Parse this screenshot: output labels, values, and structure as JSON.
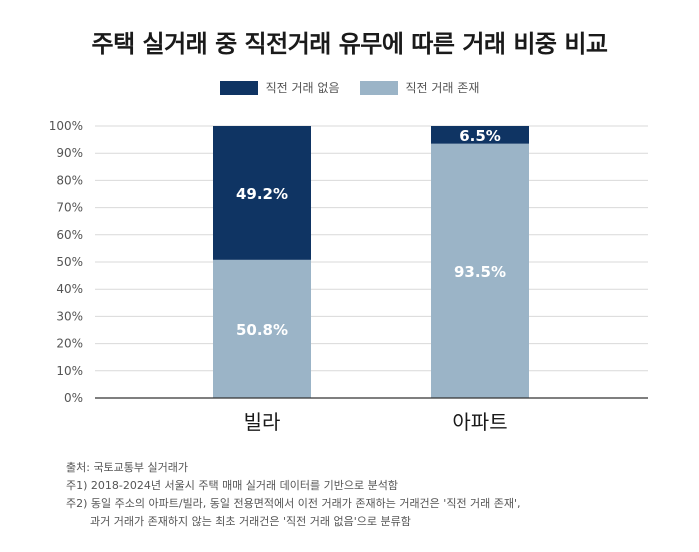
{
  "title": "주택 실거래 중 직전거래 유무에 따른 거래 비중 비교",
  "colors": {
    "no_prior": "#0f3463",
    "prior": "#9bb4c7"
  },
  "chart_data": {
    "type": "bar",
    "stacked": true,
    "categories": [
      "빌라",
      "아파트"
    ],
    "series": [
      {
        "name": "직전 거래 존재",
        "values": [
          50.8,
          93.5
        ],
        "labels": [
          "50.8%",
          "93.5%"
        ]
      },
      {
        "name": "직전 거래 없음",
        "values": [
          49.2,
          6.5
        ],
        "labels": [
          "49.2%",
          "6.5%"
        ]
      }
    ],
    "legend": [
      "직전 거래 없음",
      "직전 거래 존재"
    ],
    "legend_placement": "top",
    "ylim": [
      0,
      100
    ],
    "yticks": [
      "0%",
      "10%",
      "20%",
      "30%",
      "40%",
      "50%",
      "60%",
      "70%",
      "80%",
      "90%",
      "100%"
    ],
    "grid": true
  },
  "notes": {
    "source": "출처: 국토교통부 실거래가",
    "note1": "주1) 2018-2024년 서울시 주택 매매 실거래 데이터를 기반으로 분석함",
    "note2a": "주2) 동일 주소의 아파트/빌라, 동일 전용면적에서 이전 거래가 존재하는 거래건은 '직전 거래 존재',",
    "note2b": "과거 거래가 존재하지 않는 최초 거래건은 '직전 거래 없음'으로 분류함"
  }
}
